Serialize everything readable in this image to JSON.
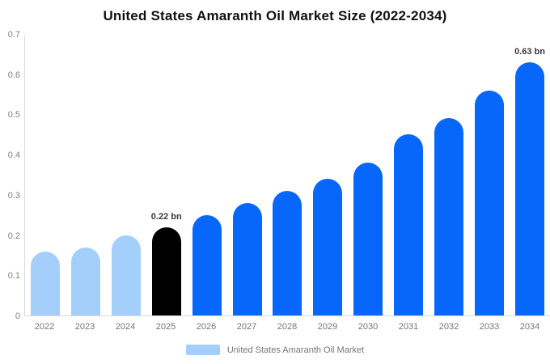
{
  "title": "United States Amaranth Oil Market Size (2022-2034)",
  "chart_data": {
    "type": "bar",
    "title": "United States Amaranth Oil Market Size (2022-2034)",
    "categories": [
      "2022",
      "2023",
      "2024",
      "2025",
      "2026",
      "2027",
      "2028",
      "2029",
      "2030",
      "2031",
      "2032",
      "2033",
      "2034"
    ],
    "values": [
      0.16,
      0.17,
      0.2,
      0.22,
      0.25,
      0.28,
      0.31,
      0.34,
      0.38,
      0.45,
      0.49,
      0.56,
      0.63
    ],
    "unit": "bn",
    "xlabel": "",
    "ylabel": "",
    "ylim": [
      0,
      0.7
    ],
    "yticks": [
      "0",
      "0.1",
      "0.2",
      "0.3",
      "0.4",
      "0.5",
      "0.6",
      "0.7"
    ],
    "grid": false,
    "bar_colors": [
      "#a4cffa",
      "#a4cffa",
      "#a4cffa",
      "#000000",
      "#0667fa",
      "#0667fa",
      "#0667fa",
      "#0667fa",
      "#0667fa",
      "#0667fa",
      "#0667fa",
      "#0667fa",
      "#0667fa"
    ],
    "annotations": [
      {
        "category": "2025",
        "text": "0.22 bn"
      },
      {
        "category": "2034",
        "text": "0.63 bn"
      }
    ],
    "legend": {
      "position": "bottom",
      "label": "United States Amaranth Oil Market",
      "swatch_color": "#a4cffa"
    }
  },
  "colors": {
    "historical_bar": "#a4cffa",
    "base_year_bar": "#000000",
    "forecast_bar": "#0667fa",
    "axis_line": "#d9d9d9",
    "tick_text": "#808080",
    "annotation_text": "#3a3a3a",
    "title_text": "#111111"
  }
}
